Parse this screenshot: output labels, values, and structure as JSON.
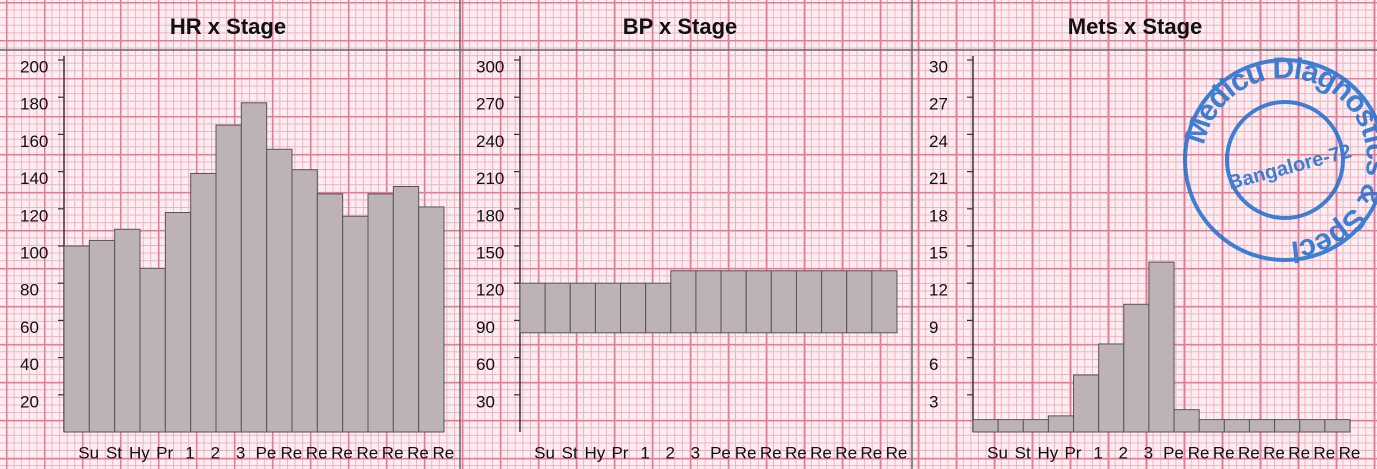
{
  "chart_data": [
    {
      "type": "bar",
      "title": "HR x Stage",
      "categories": [
        "Su",
        "St",
        "Hy",
        "Pr",
        "1",
        "2",
        "3",
        "Pe",
        "Re",
        "Re",
        "Re",
        "Re",
        "Re",
        "Re",
        "Re"
      ],
      "values": [
        100,
        103,
        109,
        88,
        118,
        139,
        165,
        177,
        152,
        141,
        128,
        116,
        128,
        132,
        121
      ],
      "color": "#bdb3b5",
      "ylim": [
        0,
        200
      ],
      "yticks": [
        20,
        40,
        60,
        80,
        100,
        120,
        140,
        160,
        180,
        200
      ]
    },
    {
      "type": "floating-bar",
      "title": "BP x Stage",
      "categories": [
        "Su",
        "St",
        "Hy",
        "Pr",
        "1",
        "2",
        "3",
        "Pe",
        "Re",
        "Re",
        "Re",
        "Re",
        "Re",
        "Re",
        "Re"
      ],
      "values": [
        [
          80,
          120
        ],
        [
          80,
          120
        ],
        [
          80,
          120
        ],
        [
          80,
          120
        ],
        [
          80,
          120
        ],
        [
          80,
          120
        ],
        [
          80,
          130
        ],
        [
          80,
          130
        ],
        [
          80,
          130
        ],
        [
          80,
          130
        ],
        [
          80,
          130
        ],
        [
          80,
          130
        ],
        [
          80,
          130
        ],
        [
          80,
          130
        ],
        [
          80,
          130
        ]
      ],
      "color": "#bdb3b5",
      "ylim": [
        0,
        300
      ],
      "yticks": [
        30,
        60,
        90,
        120,
        150,
        180,
        210,
        240,
        270,
        300
      ]
    },
    {
      "type": "bar",
      "title": "Mets x Stage",
      "categories": [
        "Su",
        "St",
        "Hy",
        "Pr",
        "1",
        "2",
        "3",
        "Pe",
        "Re",
        "Re",
        "Re",
        "Re",
        "Re",
        "Re",
        "Re"
      ],
      "values": [
        1,
        1,
        1,
        1.3,
        4.6,
        7.1,
        10.3,
        13.7,
        1.8,
        1,
        1,
        1,
        1,
        1,
        1
      ],
      "color": "#bdb3b5",
      "ylim": [
        0,
        30
      ],
      "yticks": [
        3,
        6,
        9,
        12,
        15,
        18,
        21,
        24,
        27,
        30
      ]
    }
  ],
  "stamp": {
    "outer": "Medicu Diagnostics & Speci",
    "inner": "Bangalore-72"
  }
}
